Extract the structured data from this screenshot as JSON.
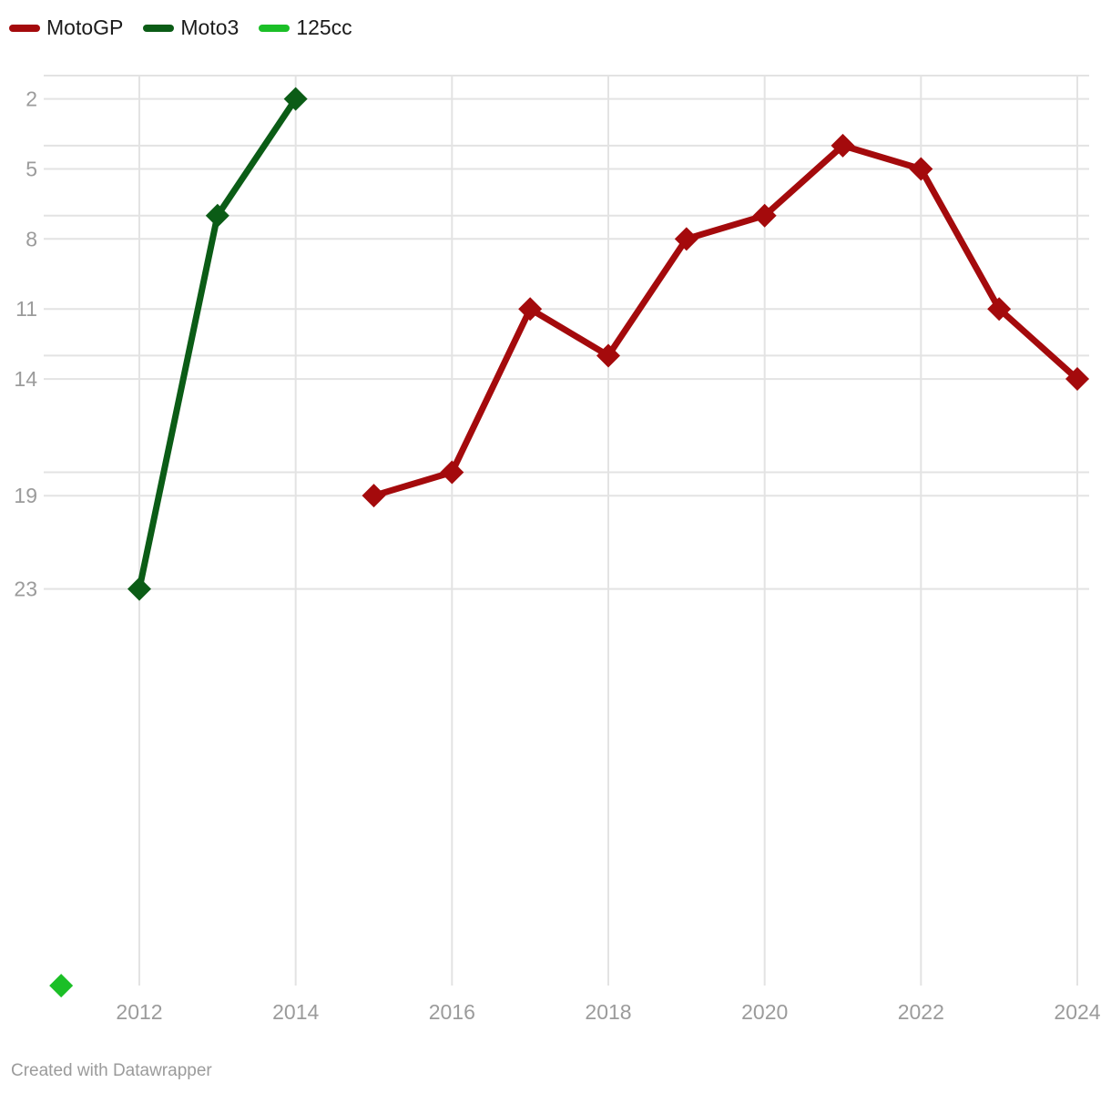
{
  "footer": {
    "attribution": "Created with Datawrapper"
  },
  "colors": {
    "background": "#ffffff",
    "grid": "#e3e3e3",
    "axis_text": "#9b9b9b",
    "legend_text": "#1b1b1b",
    "motogp_red": "#a40a0c",
    "moto3_dark_green": "#0b5c16",
    "cc125_bright_green": "#1bbf27"
  },
  "chart_data": {
    "type": "line",
    "title": "",
    "marker": "diamond",
    "grid": true,
    "legend_position": "top-left",
    "x_axis": {
      "range": [
        2011,
        2024
      ],
      "ticks": [
        2012,
        2014,
        2016,
        2018,
        2020,
        2022,
        2024
      ],
      "tick_labels": [
        "2012",
        "2014",
        "2016",
        "2018",
        "2020",
        "2022",
        "2024"
      ]
    },
    "y_axis": {
      "inverted": true,
      "meaning": "championship position (1 = best, at top)",
      "range": [
        1,
        40
      ],
      "labeled_ticks": [
        2,
        5,
        8,
        11,
        14,
        19,
        23
      ],
      "unlabeled_gridlines": [
        1,
        4,
        7,
        13,
        18
      ]
    },
    "series": [
      {
        "name": "MotoGP",
        "color": "#a40a0c",
        "points": [
          [
            2015,
            19
          ],
          [
            2016,
            18
          ],
          [
            2017,
            11
          ],
          [
            2018,
            13
          ],
          [
            2019,
            8
          ],
          [
            2020,
            7
          ],
          [
            2021,
            4
          ],
          [
            2022,
            5
          ],
          [
            2023,
            11
          ],
          [
            2024,
            14
          ]
        ]
      },
      {
        "name": "Moto3",
        "color": "#0b5c16",
        "points": [
          [
            2012,
            23
          ],
          [
            2013,
            7
          ],
          [
            2014,
            2
          ]
        ]
      },
      {
        "name": "125cc",
        "color": "#1bbf27",
        "points": [
          [
            2011,
            40
          ]
        ]
      }
    ]
  }
}
